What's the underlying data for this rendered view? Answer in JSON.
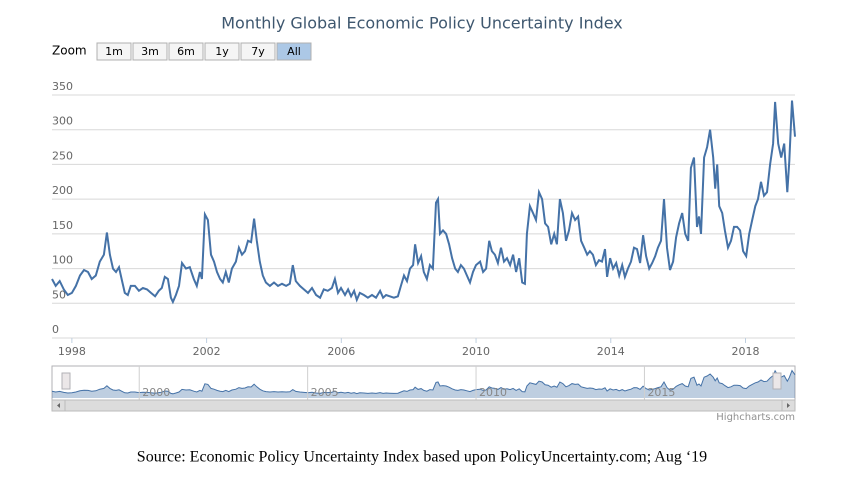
{
  "chart_data": {
    "type": "line",
    "title": "Monthly Global Economic Policy Uncertainty Index",
    "zoom_label": "Zoom",
    "zoom_buttons": [
      "1m",
      "3m",
      "6m",
      "1y",
      "7y",
      "All"
    ],
    "selected_zoom": "All",
    "credit": "Highcharts.com",
    "grid": true,
    "xlim": [
      1997.41,
      2019.47
    ],
    "xticks": [
      1998,
      2002,
      2006,
      2010,
      2014,
      2018
    ],
    "navigator_xticks": [
      2000,
      2005,
      2010,
      2015
    ],
    "ylim": [
      0,
      350
    ],
    "yticks": [
      0,
      50,
      100,
      150,
      200,
      250,
      300,
      350
    ],
    "x": [
      1997.41,
      1997.52,
      1997.64,
      1997.76,
      1997.88,
      1998.0,
      1998.12,
      1998.24,
      1998.36,
      1998.48,
      1998.59,
      1998.71,
      1998.83,
      1998.95,
      1999.04,
      1999.13,
      1999.22,
      1999.31,
      1999.4,
      1999.49,
      1999.57,
      1999.66,
      1999.75,
      1999.87,
      1999.99,
      2000.11,
      2000.23,
      2000.35,
      2000.47,
      2000.58,
      2000.67,
      2000.76,
      2000.85,
      2000.94,
      2001.0,
      2001.09,
      2001.18,
      2001.27,
      2001.39,
      2001.5,
      2001.62,
      2001.71,
      2001.8,
      2001.86,
      2001.95,
      2002.04,
      2002.13,
      2002.22,
      2002.31,
      2002.4,
      2002.48,
      2002.57,
      2002.66,
      2002.75,
      2002.87,
      2002.96,
      2003.05,
      2003.14,
      2003.23,
      2003.32,
      2003.41,
      2003.49,
      2003.58,
      2003.67,
      2003.76,
      2003.88,
      2004.0,
      2004.12,
      2004.24,
      2004.36,
      2004.47,
      2004.56,
      2004.65,
      2004.77,
      2004.89,
      2005.01,
      2005.13,
      2005.25,
      2005.37,
      2005.48,
      2005.6,
      2005.72,
      2005.81,
      2005.9,
      2005.99,
      2006.11,
      2006.2,
      2006.29,
      2006.38,
      2006.46,
      2006.55,
      2006.67,
      2006.79,
      2006.91,
      2007.03,
      2007.15,
      2007.24,
      2007.33,
      2007.44,
      2007.56,
      2007.68,
      2007.77,
      2007.86,
      2007.95,
      2008.04,
      2008.13,
      2008.19,
      2008.28,
      2008.37,
      2008.45,
      2008.54,
      2008.63,
      2008.72,
      2008.81,
      2008.87,
      2008.93,
      2009.02,
      2009.11,
      2009.2,
      2009.29,
      2009.38,
      2009.46,
      2009.55,
      2009.64,
      2009.73,
      2009.82,
      2009.91,
      2010.0,
      2010.12,
      2010.21,
      2010.3,
      2010.39,
      2010.47,
      2010.56,
      2010.65,
      2010.74,
      2010.83,
      2010.92,
      2011.01,
      2011.1,
      2011.19,
      2011.28,
      2011.37,
      2011.45,
      2011.51,
      2011.6,
      2011.69,
      2011.78,
      2011.87,
      2011.96,
      2012.05,
      2012.14,
      2012.23,
      2012.32,
      2012.4,
      2012.49,
      2012.58,
      2012.67,
      2012.76,
      2012.85,
      2012.94,
      2013.03,
      2013.12,
      2013.21,
      2013.3,
      2013.38,
      2013.47,
      2013.56,
      2013.65,
      2013.74,
      2013.83,
      2013.89,
      2013.98,
      2014.07,
      2014.16,
      2014.25,
      2014.34,
      2014.42,
      2014.51,
      2014.6,
      2014.69,
      2014.78,
      2014.87,
      2014.96,
      2015.05,
      2015.14,
      2015.23,
      2015.32,
      2015.4,
      2015.49,
      2015.58,
      2015.67,
      2015.76,
      2015.85,
      2015.94,
      2016.03,
      2016.12,
      2016.21,
      2016.3,
      2016.38,
      2016.47,
      2016.56,
      2016.62,
      2016.68,
      2016.77,
      2016.86,
      2016.95,
      2017.04,
      2017.1,
      2017.16,
      2017.22,
      2017.31,
      2017.39,
      2017.48,
      2017.57,
      2017.66,
      2017.75,
      2017.84,
      2017.93,
      2018.02,
      2018.11,
      2018.2,
      2018.29,
      2018.37,
      2018.46,
      2018.55,
      2018.64,
      2018.73,
      2018.82,
      2018.88,
      2018.97,
      2019.06,
      2019.15,
      2019.24,
      2019.3,
      2019.38,
      2019.47
    ],
    "series": [
      {
        "color": "#4572a7",
        "values": [
          85,
          75,
          82,
          70,
          62,
          65,
          75,
          90,
          98,
          95,
          85,
          90,
          110,
          120,
          152,
          120,
          100,
          95,
          102,
          82,
          65,
          62,
          75,
          75,
          68,
          72,
          70,
          65,
          60,
          68,
          72,
          88,
          85,
          58,
          52,
          62,
          75,
          108,
          100,
          102,
          85,
          75,
          95,
          85,
          178,
          170,
          120,
          110,
          95,
          85,
          80,
          95,
          80,
          100,
          110,
          130,
          120,
          125,
          140,
          138,
          172,
          140,
          110,
          90,
          80,
          75,
          80,
          75,
          78,
          75,
          78,
          105,
          82,
          75,
          70,
          65,
          72,
          62,
          58,
          70,
          68,
          72,
          85,
          65,
          72,
          62,
          70,
          60,
          68,
          55,
          65,
          62,
          58,
          62,
          58,
          68,
          58,
          62,
          60,
          58,
          60,
          75,
          90,
          82,
          100,
          105,
          135,
          108,
          118,
          95,
          85,
          105,
          100,
          195,
          200,
          150,
          155,
          150,
          135,
          115,
          100,
          95,
          105,
          100,
          90,
          80,
          95,
          105,
          110,
          95,
          100,
          140,
          125,
          120,
          108,
          130,
          110,
          115,
          105,
          120,
          95,
          115,
          80,
          78,
          150,
          190,
          180,
          170,
          210,
          200,
          165,
          160,
          135,
          150,
          135,
          200,
          180,
          140,
          155,
          180,
          170,
          175,
          140,
          130,
          120,
          125,
          120,
          105,
          112,
          110,
          128,
          88,
          115,
          100,
          108,
          90,
          105,
          88,
          100,
          110,
          130,
          128,
          108,
          148,
          118,
          100,
          108,
          118,
          130,
          140,
          200,
          130,
          98,
          110,
          145,
          165,
          180,
          150,
          140,
          245,
          260,
          160,
          175,
          150,
          260,
          275,
          300,
          260,
          215,
          250,
          190,
          180,
          155,
          130,
          140,
          160,
          160,
          155,
          125,
          118,
          150,
          170,
          190,
          200,
          225,
          205,
          210,
          250,
          280,
          340,
          280,
          260,
          280,
          210,
          255,
          342,
          290
        ]
      }
    ]
  },
  "footer": "Source:  Economic Policy Uncertainty Index based upon PolicyUncertainty.com; Aug ‘19"
}
